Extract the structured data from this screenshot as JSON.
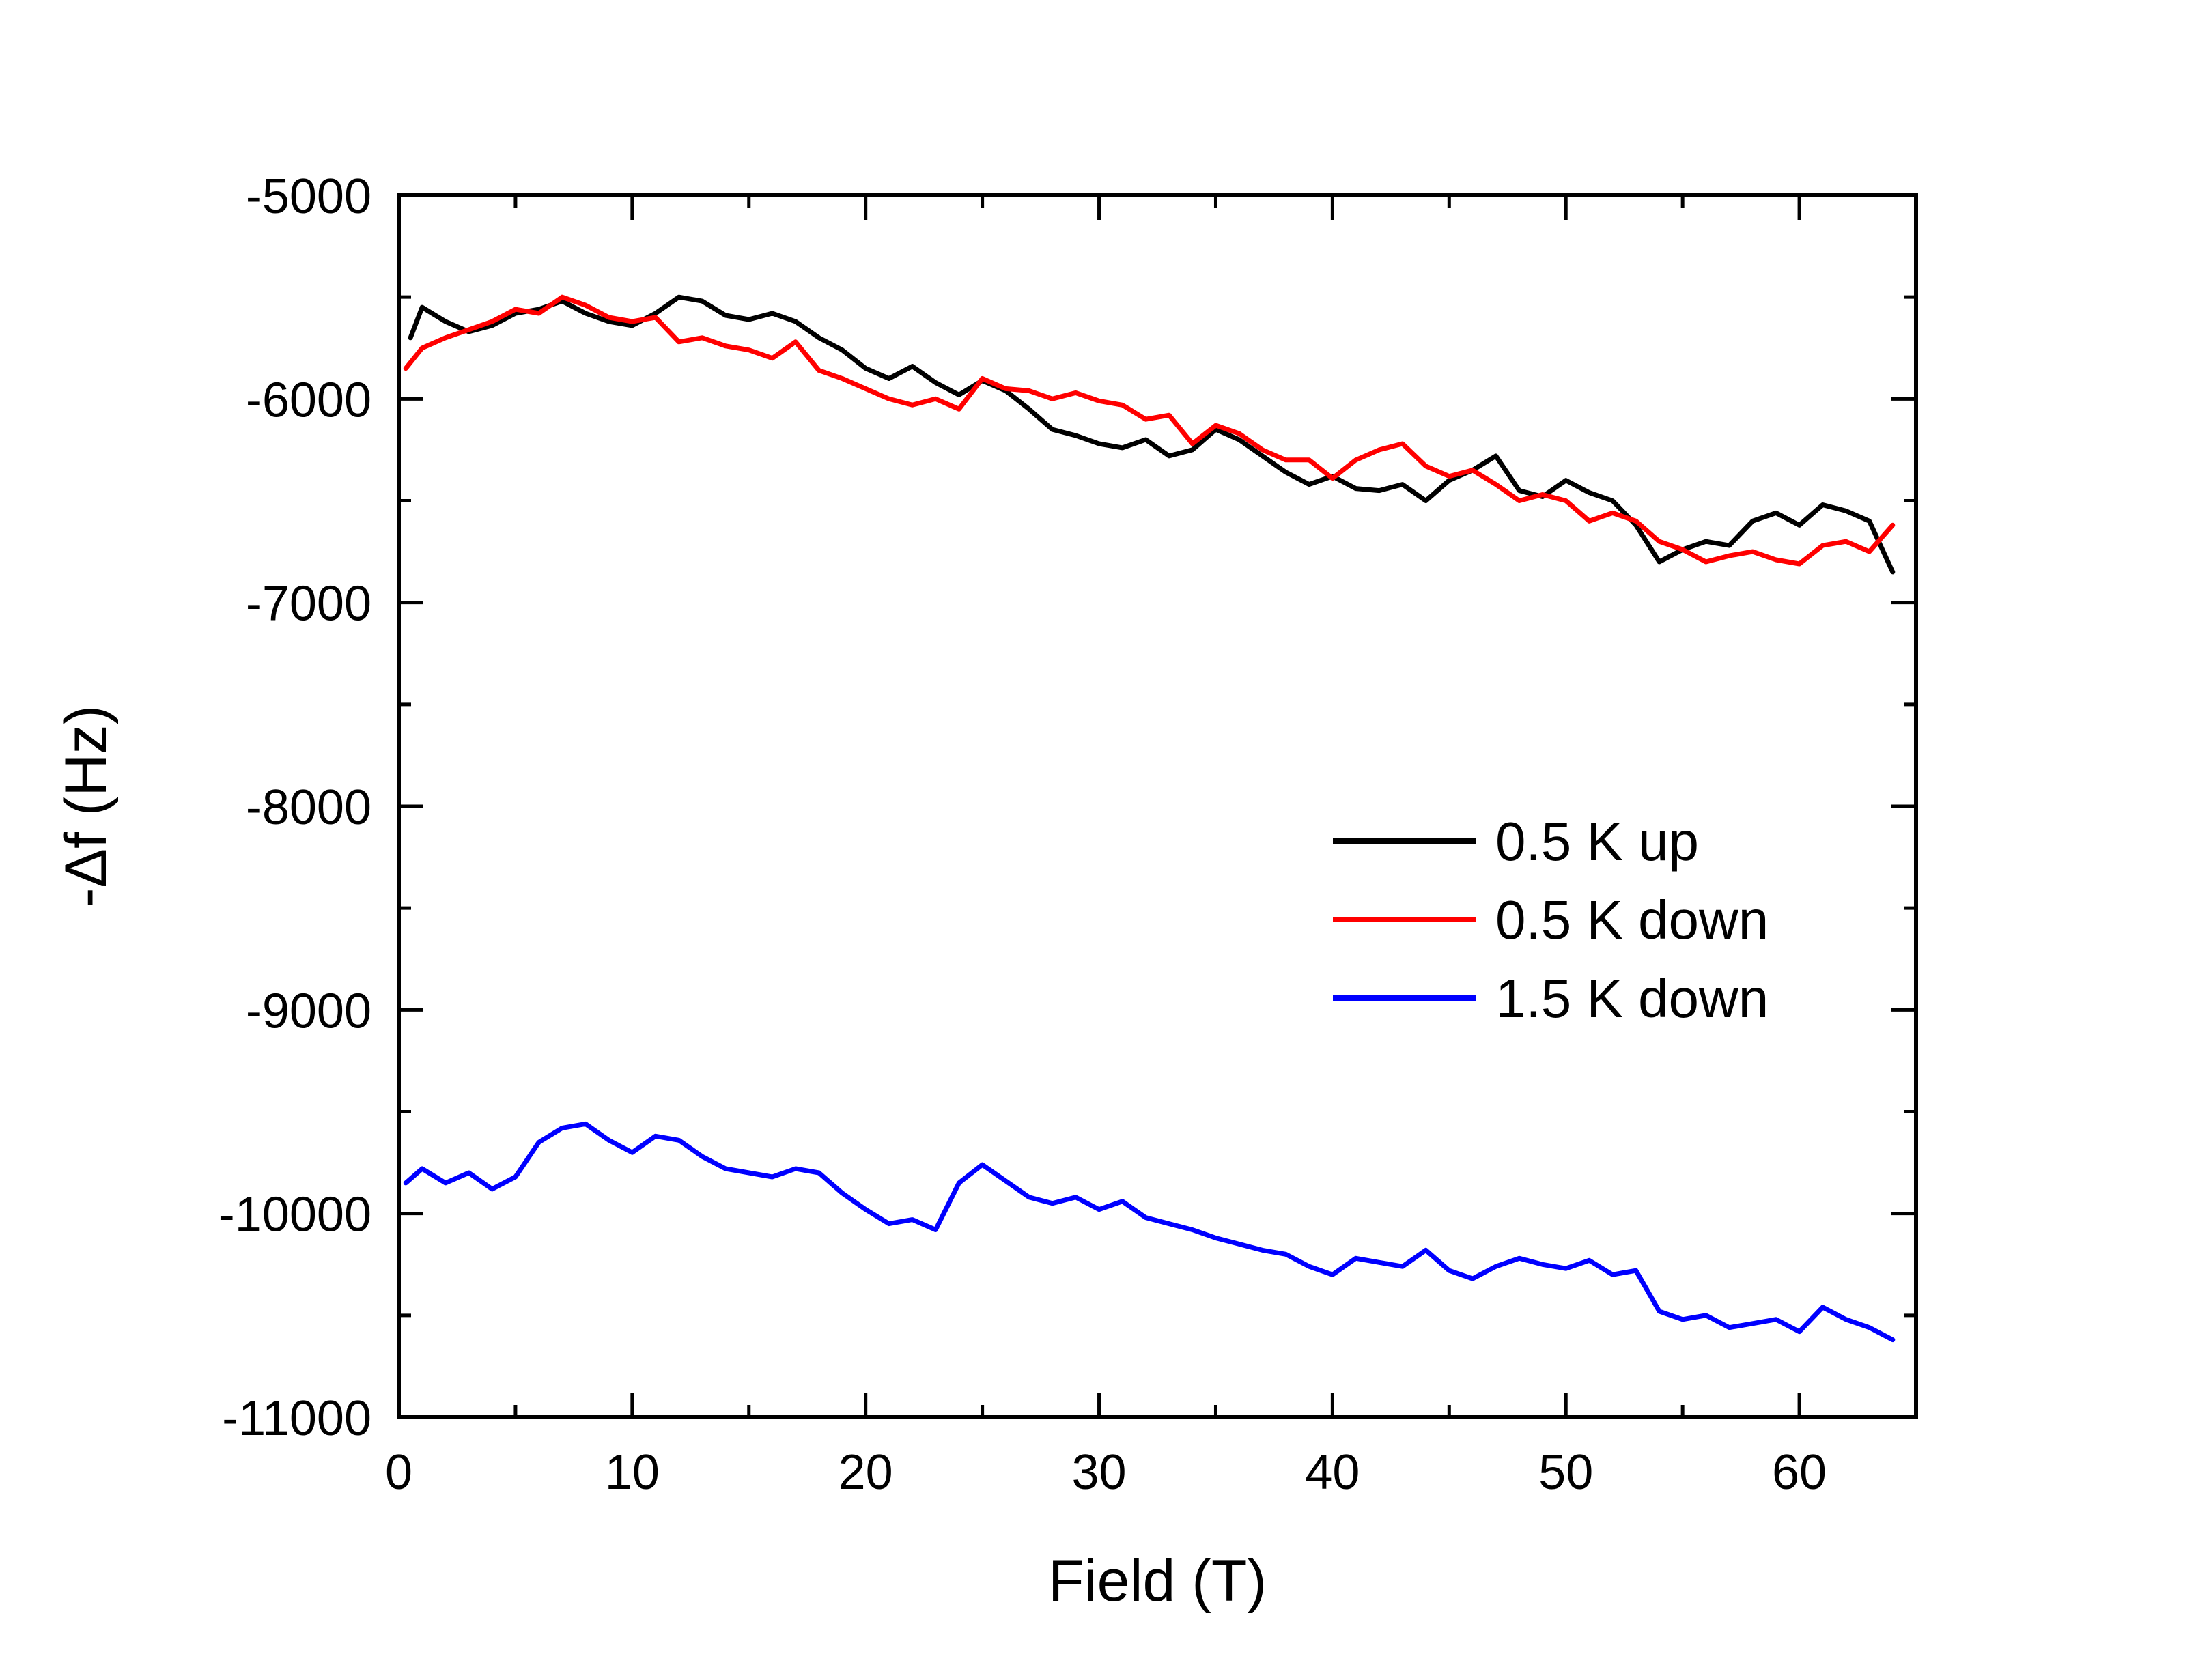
{
  "chart_data": {
    "type": "line",
    "title": "",
    "xlabel": "Field (T)",
    "ylabel": "-Δf (Hz)",
    "xlim": [
      0,
      65
    ],
    "ylim": [
      -11000,
      -5000
    ],
    "xticks": [
      0,
      10,
      20,
      30,
      40,
      50,
      60
    ],
    "xtick_labels": [
      "0",
      "10",
      "20",
      "30",
      "40",
      "50",
      "60"
    ],
    "yticks": [
      -5000,
      -6000,
      -7000,
      -8000,
      -9000,
      -10000,
      -11000
    ],
    "ytick_labels": [
      "-5000",
      "-6000",
      "-7000",
      "-8000",
      "-9000",
      "-10000",
      "-11000"
    ],
    "grid": false,
    "legend_position": "center-right",
    "series": [
      {
        "name": "0.5 K up",
        "color": "#000000",
        "x": [
          0.5,
          1,
          2,
          3,
          4,
          5,
          6,
          7,
          8,
          9,
          10,
          11,
          12,
          13,
          14,
          15,
          16,
          17,
          18,
          19,
          20,
          21,
          22,
          23,
          24,
          25,
          26,
          27,
          28,
          29,
          30,
          31,
          32,
          33,
          34,
          35,
          36,
          37,
          38,
          39,
          40,
          41,
          42,
          43,
          44,
          45,
          46,
          47,
          48,
          49,
          50,
          51,
          52,
          53,
          54,
          55,
          56,
          57,
          58,
          59,
          60,
          61,
          62,
          63,
          64
        ],
        "y": [
          -5700,
          -5550,
          -5620,
          -5670,
          -5640,
          -5580,
          -5560,
          -5520,
          -5580,
          -5620,
          -5640,
          -5580,
          -5500,
          -5520,
          -5590,
          -5610,
          -5580,
          -5620,
          -5700,
          -5760,
          -5850,
          -5900,
          -5840,
          -5920,
          -5980,
          -5910,
          -5960,
          -6050,
          -6150,
          -6180,
          -6220,
          -6240,
          -6200,
          -6280,
          -6250,
          -6150,
          -6200,
          -6280,
          -6360,
          -6420,
          -6380,
          -6440,
          -6450,
          -6420,
          -6500,
          -6400,
          -6350,
          -6280,
          -6450,
          -6480,
          -6400,
          -6460,
          -6500,
          -6620,
          -6800,
          -6740,
          -6700,
          -6720,
          -6600,
          -6560,
          -6620,
          -6520,
          -6550,
          -6600,
          -6850
        ]
      },
      {
        "name": "0.5 K down",
        "color": "#ff0000",
        "x": [
          0.3,
          1,
          2,
          3,
          4,
          5,
          6,
          7,
          8,
          9,
          10,
          11,
          12,
          13,
          14,
          15,
          16,
          17,
          18,
          19,
          20,
          21,
          22,
          23,
          24,
          25,
          26,
          27,
          28,
          29,
          30,
          31,
          32,
          33,
          34,
          35,
          36,
          37,
          38,
          39,
          40,
          41,
          42,
          43,
          44,
          45,
          46,
          47,
          48,
          49,
          50,
          51,
          52,
          53,
          54,
          55,
          56,
          57,
          58,
          59,
          60,
          61,
          62,
          63,
          64
        ],
        "y": [
          -5850,
          -5750,
          -5700,
          -5660,
          -5620,
          -5560,
          -5580,
          -5500,
          -5540,
          -5600,
          -5620,
          -5600,
          -5720,
          -5700,
          -5740,
          -5760,
          -5800,
          -5720,
          -5860,
          -5900,
          -5950,
          -6000,
          -6030,
          -6000,
          -6050,
          -5900,
          -5950,
          -5960,
          -6000,
          -5970,
          -6010,
          -6030,
          -6100,
          -6080,
          -6220,
          -6130,
          -6170,
          -6250,
          -6300,
          -6300,
          -6390,
          -6300,
          -6250,
          -6220,
          -6330,
          -6380,
          -6350,
          -6420,
          -6500,
          -6470,
          -6500,
          -6600,
          -6560,
          -6600,
          -6700,
          -6740,
          -6800,
          -6770,
          -6750,
          -6790,
          -6810,
          -6720,
          -6700,
          -6750,
          -6620
        ]
      },
      {
        "name": "1.5 K down",
        "color": "#0000ff",
        "x": [
          0.3,
          1,
          2,
          3,
          4,
          5,
          6,
          7,
          8,
          9,
          10,
          11,
          12,
          13,
          14,
          15,
          16,
          17,
          18,
          19,
          20,
          21,
          22,
          23,
          24,
          25,
          26,
          27,
          28,
          29,
          30,
          31,
          32,
          33,
          34,
          35,
          36,
          37,
          38,
          39,
          40,
          41,
          42,
          43,
          44,
          45,
          46,
          47,
          48,
          49,
          50,
          51,
          52,
          53,
          54,
          55,
          56,
          57,
          58,
          59,
          60,
          61,
          62,
          63,
          64
        ],
        "y": [
          -9850,
          -9780,
          -9850,
          -9800,
          -9880,
          -9820,
          -9650,
          -9580,
          -9560,
          -9640,
          -9700,
          -9620,
          -9640,
          -9720,
          -9780,
          -9800,
          -9820,
          -9780,
          -9800,
          -9900,
          -9980,
          -10050,
          -10030,
          -10080,
          -9850,
          -9760,
          -9840,
          -9920,
          -9950,
          -9920,
          -9980,
          -9940,
          -10020,
          -10050,
          -10080,
          -10120,
          -10150,
          -10180,
          -10200,
          -10260,
          -10300,
          -10220,
          -10240,
          -10260,
          -10180,
          -10280,
          -10320,
          -10260,
          -10220,
          -10250,
          -10270,
          -10230,
          -10300,
          -10280,
          -10480,
          -10520,
          -10500,
          -10560,
          -10540,
          -10520,
          -10580,
          -10460,
          -10520,
          -10560,
          -10620
        ]
      }
    ]
  }
}
